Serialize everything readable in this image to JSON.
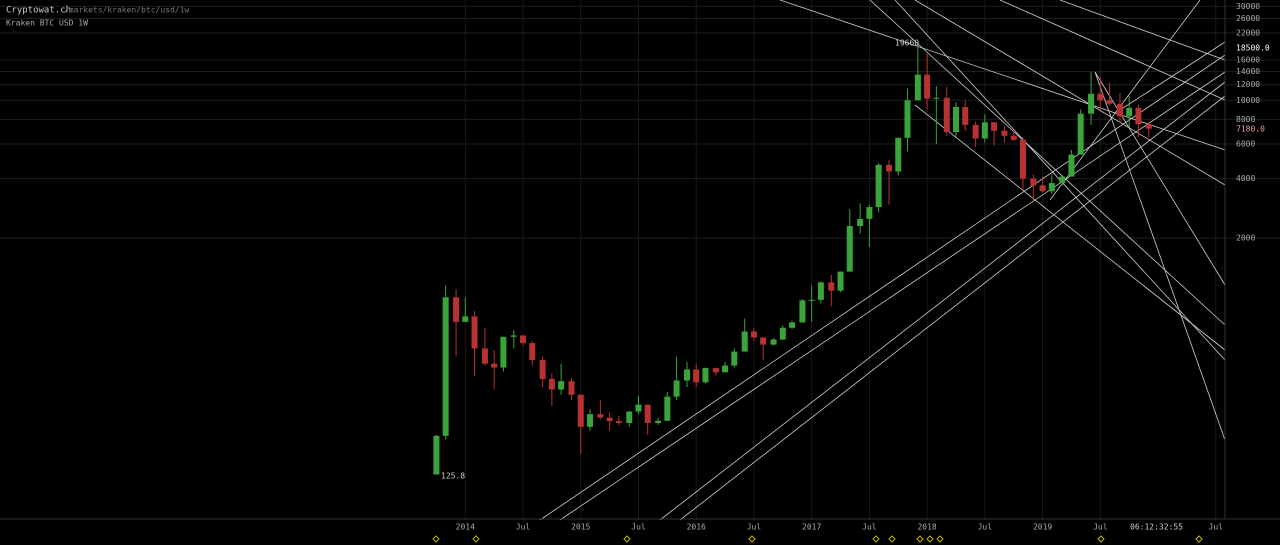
{
  "header": {
    "site": "Cryptowat.ch",
    "path": "/markets/kraken/btc/usd/1w",
    "market": "Kraken BTC USD 1W"
  },
  "chart_data": {
    "type": "candlestick",
    "log_scale": true,
    "grid": true,
    "up_color": "#3aa53a",
    "down_color": "#b83232",
    "x": [
      2013.75,
      2013.83,
      2013.92,
      2014.0,
      2014.08,
      2014.17,
      2014.25,
      2014.33,
      2014.42,
      2014.5,
      2014.58,
      2014.67,
      2014.75,
      2014.83,
      2014.92,
      2015.0,
      2015.08,
      2015.17,
      2015.25,
      2015.33,
      2015.42,
      2015.5,
      2015.58,
      2015.67,
      2015.75,
      2015.83,
      2015.92,
      2016.0,
      2016.08,
      2016.17,
      2016.25,
      2016.33,
      2016.42,
      2016.5,
      2016.58,
      2016.67,
      2016.75,
      2016.83,
      2016.92,
      2017.0,
      2017.08,
      2017.17,
      2017.25,
      2017.33,
      2017.42,
      2017.5,
      2017.58,
      2017.67,
      2017.75,
      2017.83,
      2017.92,
      2018.0,
      2018.08,
      2018.17,
      2018.25,
      2018.33,
      2018.42,
      2018.5,
      2018.58,
      2018.67,
      2018.75,
      2018.83,
      2018.92,
      2019.0,
      2019.08,
      2019.17,
      2019.25,
      2019.33,
      2019.42,
      2019.5,
      2019.58,
      2019.67,
      2019.75,
      2019.83,
      2019.92
    ],
    "open": [
      126,
      198,
      1000,
      750,
      800,
      550,
      460,
      440,
      630,
      640,
      585,
      480,
      385,
      340,
      375,
      320,
      220,
      255,
      245,
      235,
      230,
      263,
      285,
      230,
      236,
      313,
      378,
      430,
      370,
      437,
      416,
      450,
      530,
      670,
      625,
      575,
      610,
      700,
      745,
      965,
      970,
      1190,
      1080,
      1350,
      2300,
      2500,
      2870,
      4700,
      4350,
      6450,
      10000,
      13500,
      10200,
      10300,
      6900,
      9250,
      7500,
      6400,
      7730,
      7000,
      6600,
      6300,
      4000,
      3700,
      3450,
      3800,
      4100,
      5300,
      8550,
      10800,
      10000,
      9600,
      8300,
      9150,
      7550
    ],
    "high": [
      200,
      1150,
      1100,
      1000,
      850,
      700,
      540,
      630,
      680,
      640,
      600,
      500,
      410,
      460,
      390,
      320,
      270,
      300,
      260,
      250,
      265,
      315,
      285,
      245,
      330,
      500,
      470,
      460,
      440,
      440,
      470,
      550,
      780,
      700,
      625,
      620,
      720,
      760,
      980,
      1150,
      1200,
      1300,
      1350,
      2800,
      3000,
      2950,
      4800,
      5000,
      6450,
      11500,
      19660,
      17200,
      11800,
      11700,
      9800,
      10000,
      7800,
      8500,
      7760,
      7400,
      7000,
      6500,
      4200,
      4100,
      4200,
      4100,
      5600,
      9000,
      13900,
      13200,
      12300,
      10900,
      10500,
      9500,
      7700
    ],
    "low": [
      125.8,
      190,
      500,
      750,
      400,
      450,
      340,
      420,
      550,
      570,
      450,
      350,
      280,
      320,
      300,
      160,
      210,
      240,
      210,
      225,
      220,
      255,
      200,
      225,
      236,
      300,
      350,
      350,
      365,
      400,
      415,
      440,
      530,
      600,
      480,
      570,
      605,
      690,
      745,
      750,
      930,
      900,
      1060,
      1350,
      2100,
      1800,
      2700,
      2950,
      4150,
      5500,
      10000,
      9000,
      6000,
      6600,
      6500,
      7000,
      5800,
      6100,
      5900,
      6100,
      6200,
      3500,
      3100,
      3400,
      3350,
      3700,
      4100,
      5300,
      7500,
      9000,
      9400,
      7700,
      7300,
      6500,
      6500
    ],
    "close": [
      198,
      1000,
      750,
      800,
      550,
      460,
      440,
      630,
      640,
      585,
      480,
      385,
      340,
      375,
      320,
      220,
      255,
      245,
      235,
      230,
      263,
      285,
      230,
      236,
      313,
      378,
      430,
      370,
      437,
      416,
      450,
      530,
      670,
      625,
      575,
      610,
      700,
      745,
      965,
      970,
      1190,
      1080,
      1350,
      2300,
      2500,
      2870,
      4700,
      4350,
      6450,
      10000,
      13500,
      10200,
      10300,
      6900,
      9250,
      7500,
      6400,
      7730,
      7000,
      6600,
      6300,
      4000,
      3700,
      3450,
      3800,
      4100,
      5300,
      8550,
      10800,
      10000,
      9600,
      8300,
      9150,
      7550,
      7180
    ],
    "xlim": [
      2009.97,
      2020.58
    ],
    "xticks": [
      2014,
      {
        "value": 2014.5,
        "label": "Jul"
      },
      2015,
      {
        "value": 2015.5,
        "label": "Jul"
      },
      2016,
      {
        "value": 2016.5,
        "label": "Jul"
      },
      2017,
      {
        "value": 2017.5,
        "label": "Jul"
      },
      2018,
      {
        "value": 2018.5,
        "label": "Jul"
      },
      2019,
      {
        "value": 2019.5,
        "label": "Jul"
      },
      {
        "value": 2020.5,
        "label": "Jul"
      }
    ],
    "ylim": [
      74,
      32300
    ],
    "yticks": [
      2000,
      4000,
      6000,
      8000,
      10000,
      12000,
      14000,
      16000,
      22000,
      26000,
      30000
    ],
    "high_label": "19660",
    "low_label": "125.8",
    "cursor_label": "18500.0",
    "last_price_label": "7180.0",
    "countdown": "06:12:32:55"
  }
}
